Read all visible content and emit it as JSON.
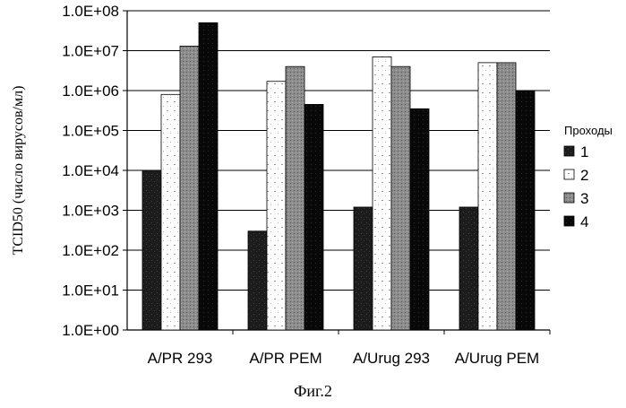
{
  "figure_caption": "Фиг.2",
  "chart_data": {
    "type": "bar",
    "y_scale": "log",
    "ylim": [
      1,
      100000000
    ],
    "ylabel": "TCID50 (число вирусов/мл)",
    "xlabel": "",
    "y_tick_labels": [
      "1.0E+00",
      "1.0E+01",
      "1.0E+02",
      "1.0E+03",
      "1.0E+04",
      "1.0E+05",
      "1.0E+06",
      "1.0E+07",
      "1.0E+08"
    ],
    "categories": [
      "A/PR 293",
      "A/PR PEM",
      "A/Urug 293",
      "A/Urug PEM"
    ],
    "legend_title": "Проходы",
    "legend_position": "right",
    "grid": true,
    "series": [
      {
        "name": "1",
        "color": "#1a1a1a",
        "values": [
          10000,
          300,
          1200,
          1200
        ]
      },
      {
        "name": "2",
        "color": "#ffffff",
        "values": [
          800000,
          1700000,
          7000000,
          5000000
        ]
      },
      {
        "name": "3",
        "color": "#8a8a8a",
        "values": [
          13000000,
          4000000,
          4000000,
          5000000
        ]
      },
      {
        "name": "4",
        "color": "#050505",
        "values": [
          50000000,
          450000,
          350000,
          1000000
        ]
      }
    ]
  }
}
